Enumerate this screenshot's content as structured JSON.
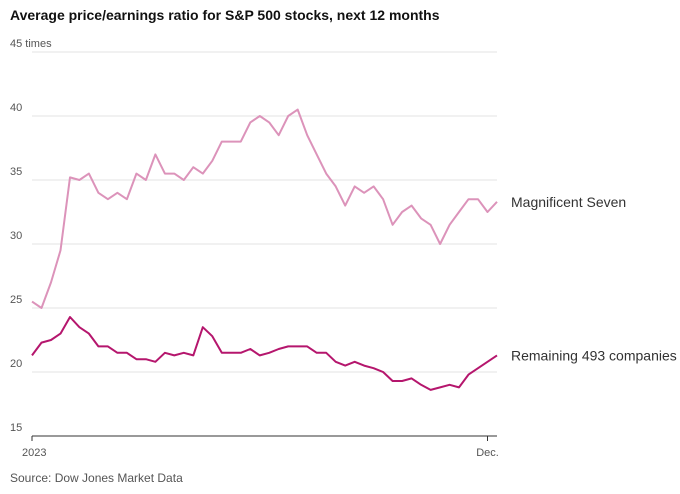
{
  "chart_data": {
    "type": "line",
    "title": "Average price/earnings ratio for S&P 500 stocks, next 12 months",
    "source": "Source: Dow Jones Market Data",
    "categories": [
      "2023",
      null,
      null,
      null,
      null,
      null,
      null,
      null,
      null,
      null,
      null,
      null,
      null,
      null,
      null,
      null,
      null,
      null,
      null,
      null,
      null,
      null,
      null,
      null,
      null,
      null,
      null,
      null,
      null,
      null,
      null,
      null,
      null,
      null,
      null,
      null,
      null,
      null,
      null,
      null,
      null,
      null,
      null,
      null,
      null,
      null,
      null,
      null,
      "Dec.",
      null
    ],
    "series": [
      {
        "name": "Magnificent Seven",
        "color": "#dc93ba",
        "values": [
          25.5,
          25,
          27,
          29.5,
          35.2,
          35,
          35.5,
          34,
          33.5,
          34,
          33.5,
          35.5,
          35,
          37,
          35.5,
          35.5,
          35,
          36,
          35.5,
          36.5,
          38,
          38,
          38,
          39.5,
          40,
          39.5,
          38.5,
          40,
          40.5,
          38.5,
          37,
          35.5,
          34.5,
          33,
          34.5,
          34,
          34.5,
          33.5,
          31.5,
          32.5,
          33,
          32,
          31.5,
          30,
          31.5,
          32.5,
          33.5,
          33.5,
          32.5,
          33.3
        ]
      },
      {
        "name": "Remaining 493 companies",
        "color": "#b5166d",
        "values": [
          21.3,
          22.3,
          22.5,
          23,
          24.3,
          23.5,
          23,
          22,
          22,
          21.5,
          21.5,
          21,
          21,
          20.8,
          21.5,
          21.3,
          21.5,
          21.3,
          23.5,
          22.8,
          21.5,
          21.5,
          21.5,
          21.8,
          21.3,
          21.5,
          21.8,
          22,
          22,
          22,
          21.5,
          21.5,
          20.8,
          20.5,
          20.8,
          20.5,
          20.3,
          20,
          19.3,
          19.3,
          19.5,
          19,
          18.6,
          18.8,
          19,
          18.8,
          19.8,
          20.3,
          20.8,
          21.3
        ]
      }
    ],
    "ylim": [
      15,
      45
    ],
    "yticks": [
      15,
      20,
      25,
      30,
      35,
      40,
      {
        "value": 45,
        "label": "45 times"
      }
    ],
    "grid": true
  }
}
